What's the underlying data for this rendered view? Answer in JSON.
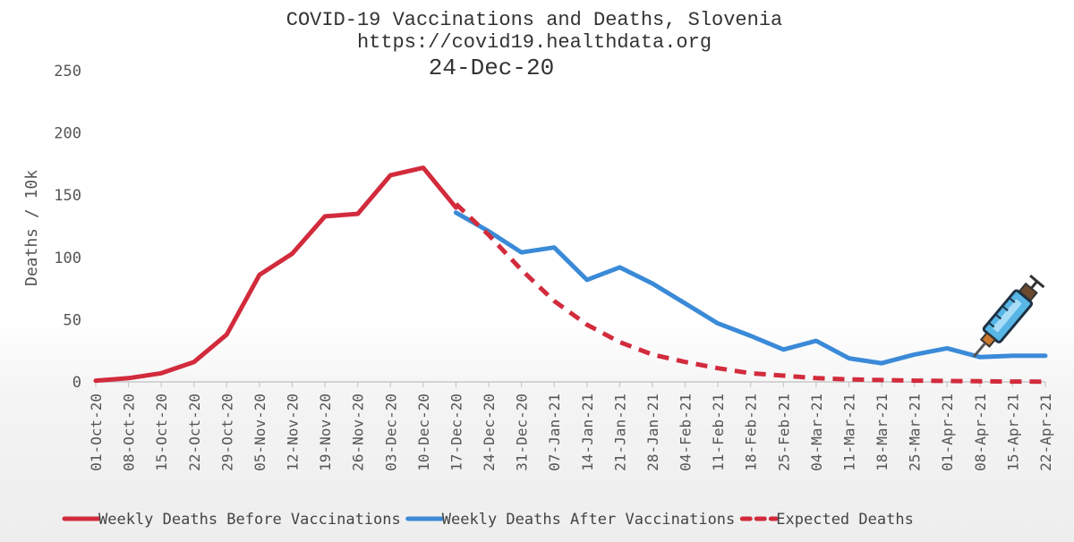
{
  "chart_data": {
    "type": "line",
    "title": "COVID-19 Vaccinations and Deaths, Slovenia",
    "subtitle": "https://covid19.healthdata.org",
    "date_label": "24-Dec-20",
    "ylabel": "Deaths / 10k",
    "xlabel": "",
    "ylim": [
      0,
      250
    ],
    "yticks": [
      0,
      50,
      100,
      150,
      200,
      250
    ],
    "grid": false,
    "legend_position": "bottom",
    "categories": [
      "01-Oct-20",
      "08-Oct-20",
      "15-Oct-20",
      "22-Oct-20",
      "29-Oct-20",
      "05-Nov-20",
      "12-Nov-20",
      "19-Nov-20",
      "26-Nov-20",
      "03-Dec-20",
      "10-Dec-20",
      "17-Dec-20",
      "24-Dec-20",
      "31-Dec-20",
      "07-Jan-21",
      "14-Jan-21",
      "21-Jan-21",
      "28-Jan-21",
      "04-Feb-21",
      "11-Feb-21",
      "18-Feb-21",
      "25-Feb-21",
      "04-Mar-21",
      "11-Mar-21",
      "18-Mar-21",
      "25-Mar-21",
      "01-Apr-21",
      "08-Apr-21",
      "15-Apr-21",
      "22-Apr-21"
    ],
    "series": [
      {
        "name": "Weekly Deaths Before Vaccinations",
        "color": "#d22b3c",
        "style": "solid",
        "values": [
          1,
          3,
          7,
          16,
          38,
          86,
          103,
          133,
          135,
          166,
          172,
          140,
          null,
          null,
          null,
          null,
          null,
          null,
          null,
          null,
          null,
          null,
          null,
          null,
          null,
          null,
          null,
          null,
          null,
          null
        ]
      },
      {
        "name": "Weekly Deaths After Vaccinations",
        "color": "#3b8ad8",
        "style": "solid",
        "values": [
          null,
          null,
          null,
          null,
          null,
          null,
          null,
          null,
          null,
          null,
          null,
          136,
          121,
          104,
          108,
          82,
          92,
          79,
          63,
          47,
          37,
          26,
          33,
          19,
          15,
          22,
          27,
          20,
          21,
          21
        ]
      },
      {
        "name": "Expected Deaths",
        "color": "#d22b3c",
        "style": "dashed",
        "values": [
          null,
          null,
          null,
          null,
          null,
          null,
          null,
          null,
          null,
          null,
          null,
          143,
          118,
          90,
          65,
          46,
          32,
          22,
          16,
          11,
          7,
          5,
          3,
          2,
          1.5,
          1,
          0.8,
          0.5,
          0.3,
          0.2
        ]
      }
    ]
  },
  "icons": {
    "syringe": "syringe-icon"
  }
}
